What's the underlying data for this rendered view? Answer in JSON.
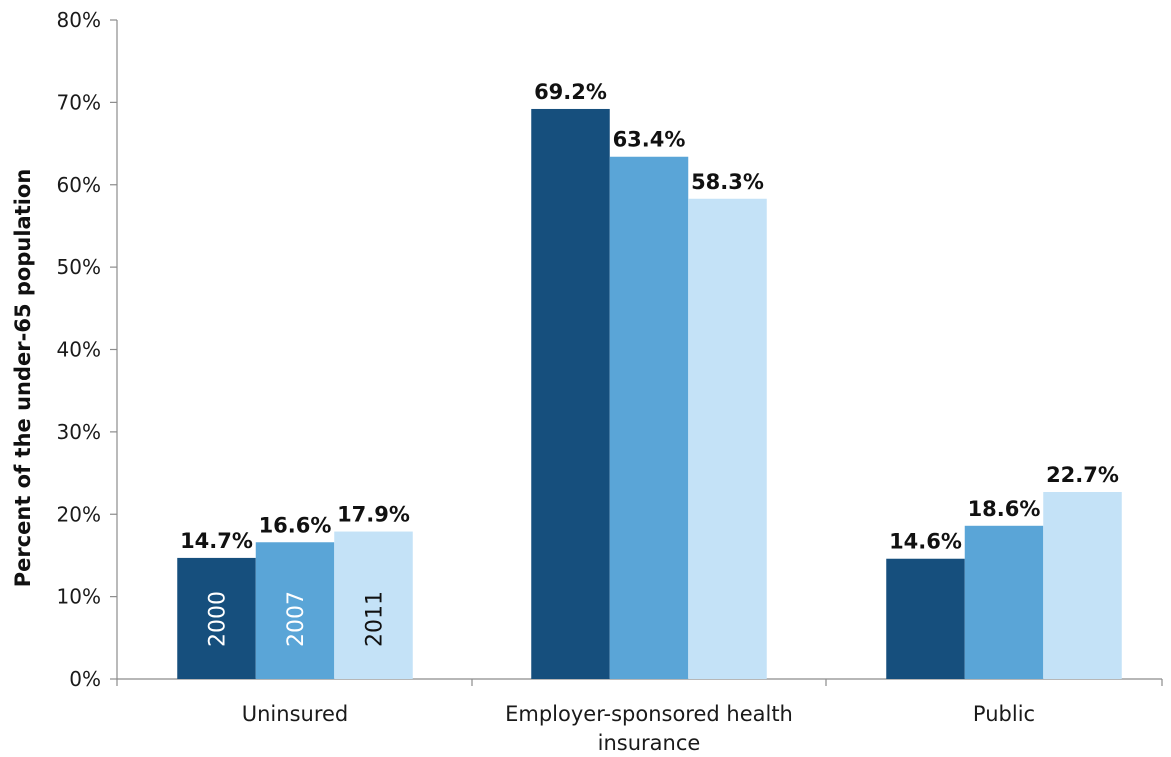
{
  "chart_data": {
    "type": "bar",
    "title": "",
    "xlabel": "",
    "ylabel": "Percent of the under-65 population",
    "ylim": [
      0,
      80
    ],
    "yticks": [
      "0%",
      "10%",
      "20%",
      "30%",
      "40%",
      "50%",
      "60%",
      "70%",
      "80%"
    ],
    "categories": [
      [
        "Uninsured"
      ],
      [
        "Employer-sponsored health",
        "insurance"
      ],
      [
        "Public"
      ]
    ],
    "series": [
      {
        "name": "2000",
        "color": "#164f7d",
        "label_color": "#ffffff",
        "values": [
          14.7,
          69.2,
          14.6
        ],
        "labels": [
          "14.7%",
          "69.2%",
          "14.6%"
        ]
      },
      {
        "name": "2007",
        "color": "#5aa5d7",
        "label_color": "#ffffff",
        "values": [
          16.6,
          63.4,
          18.6
        ],
        "labels": [
          "16.6%",
          "63.4%",
          "18.6%"
        ]
      },
      {
        "name": "2011",
        "color": "#c4e2f7",
        "label_color": "#111111",
        "values": [
          17.9,
          58.3,
          22.7
        ],
        "labels": [
          "17.9%",
          "58.3%",
          "22.7%"
        ]
      }
    ],
    "series_names_inside_first_group": true,
    "grid": false,
    "legend": "none"
  }
}
